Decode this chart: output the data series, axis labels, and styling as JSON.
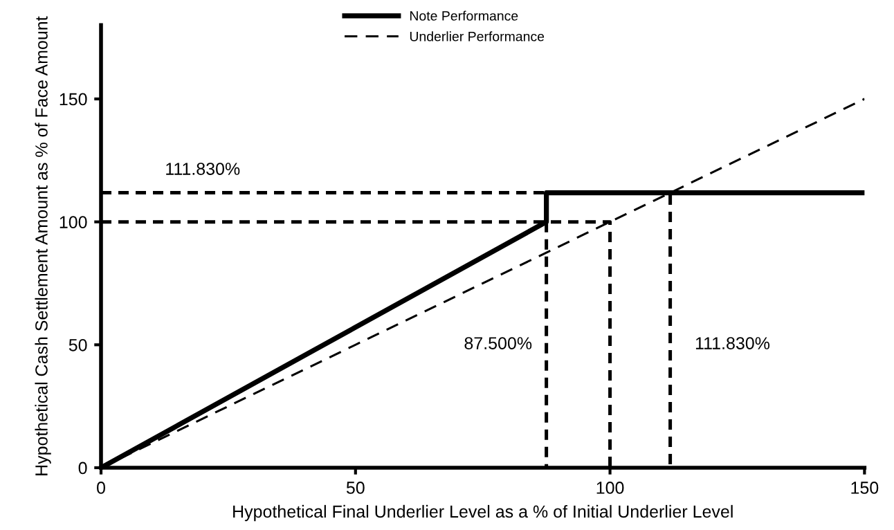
{
  "chart_data": {
    "type": "line",
    "xlabel": "Hypothetical Final Underlier Level as a % of Initial Underlier Level",
    "ylabel": "Hypothetical Cash Settlement Amount as % of Face Amount",
    "xlim": [
      0,
      150
    ],
    "xticks": [
      0,
      50,
      100,
      150
    ],
    "ylim": [
      0,
      180
    ],
    "yticks": [
      0,
      50,
      100,
      150
    ],
    "grid": false,
    "legend": "top",
    "marker": "none",
    "series": [
      {
        "name": "Note Performance",
        "color": "#000000",
        "line_style": "solid",
        "x": [
          0,
          87.5,
          87.5,
          150
        ],
        "values": [
          0,
          100,
          111.83,
          111.83
        ]
      },
      {
        "name": "Underlier Performance",
        "color": "#000000",
        "line_style": "dashed",
        "x": [
          0,
          150
        ],
        "values": [
          0,
          150
        ]
      },
      {
        "color": "#000000",
        "line_style": "dashed",
        "x": [
          0,
          100,
          100
        ],
        "values": [
          100,
          100,
          0
        ]
      },
      {
        "color": "#000000",
        "line_style": "dashed",
        "x": [
          0,
          111.83,
          111.83
        ],
        "values": [
          111.83,
          111.83,
          0
        ]
      },
      {
        "color": "#000000",
        "line_style": "dashed",
        "x": [
          87.5,
          87.5
        ],
        "values": [
          100,
          0
        ]
      }
    ],
    "annotations": [
      "111.830%",
      "87.500%",
      "111.830%"
    ]
  }
}
